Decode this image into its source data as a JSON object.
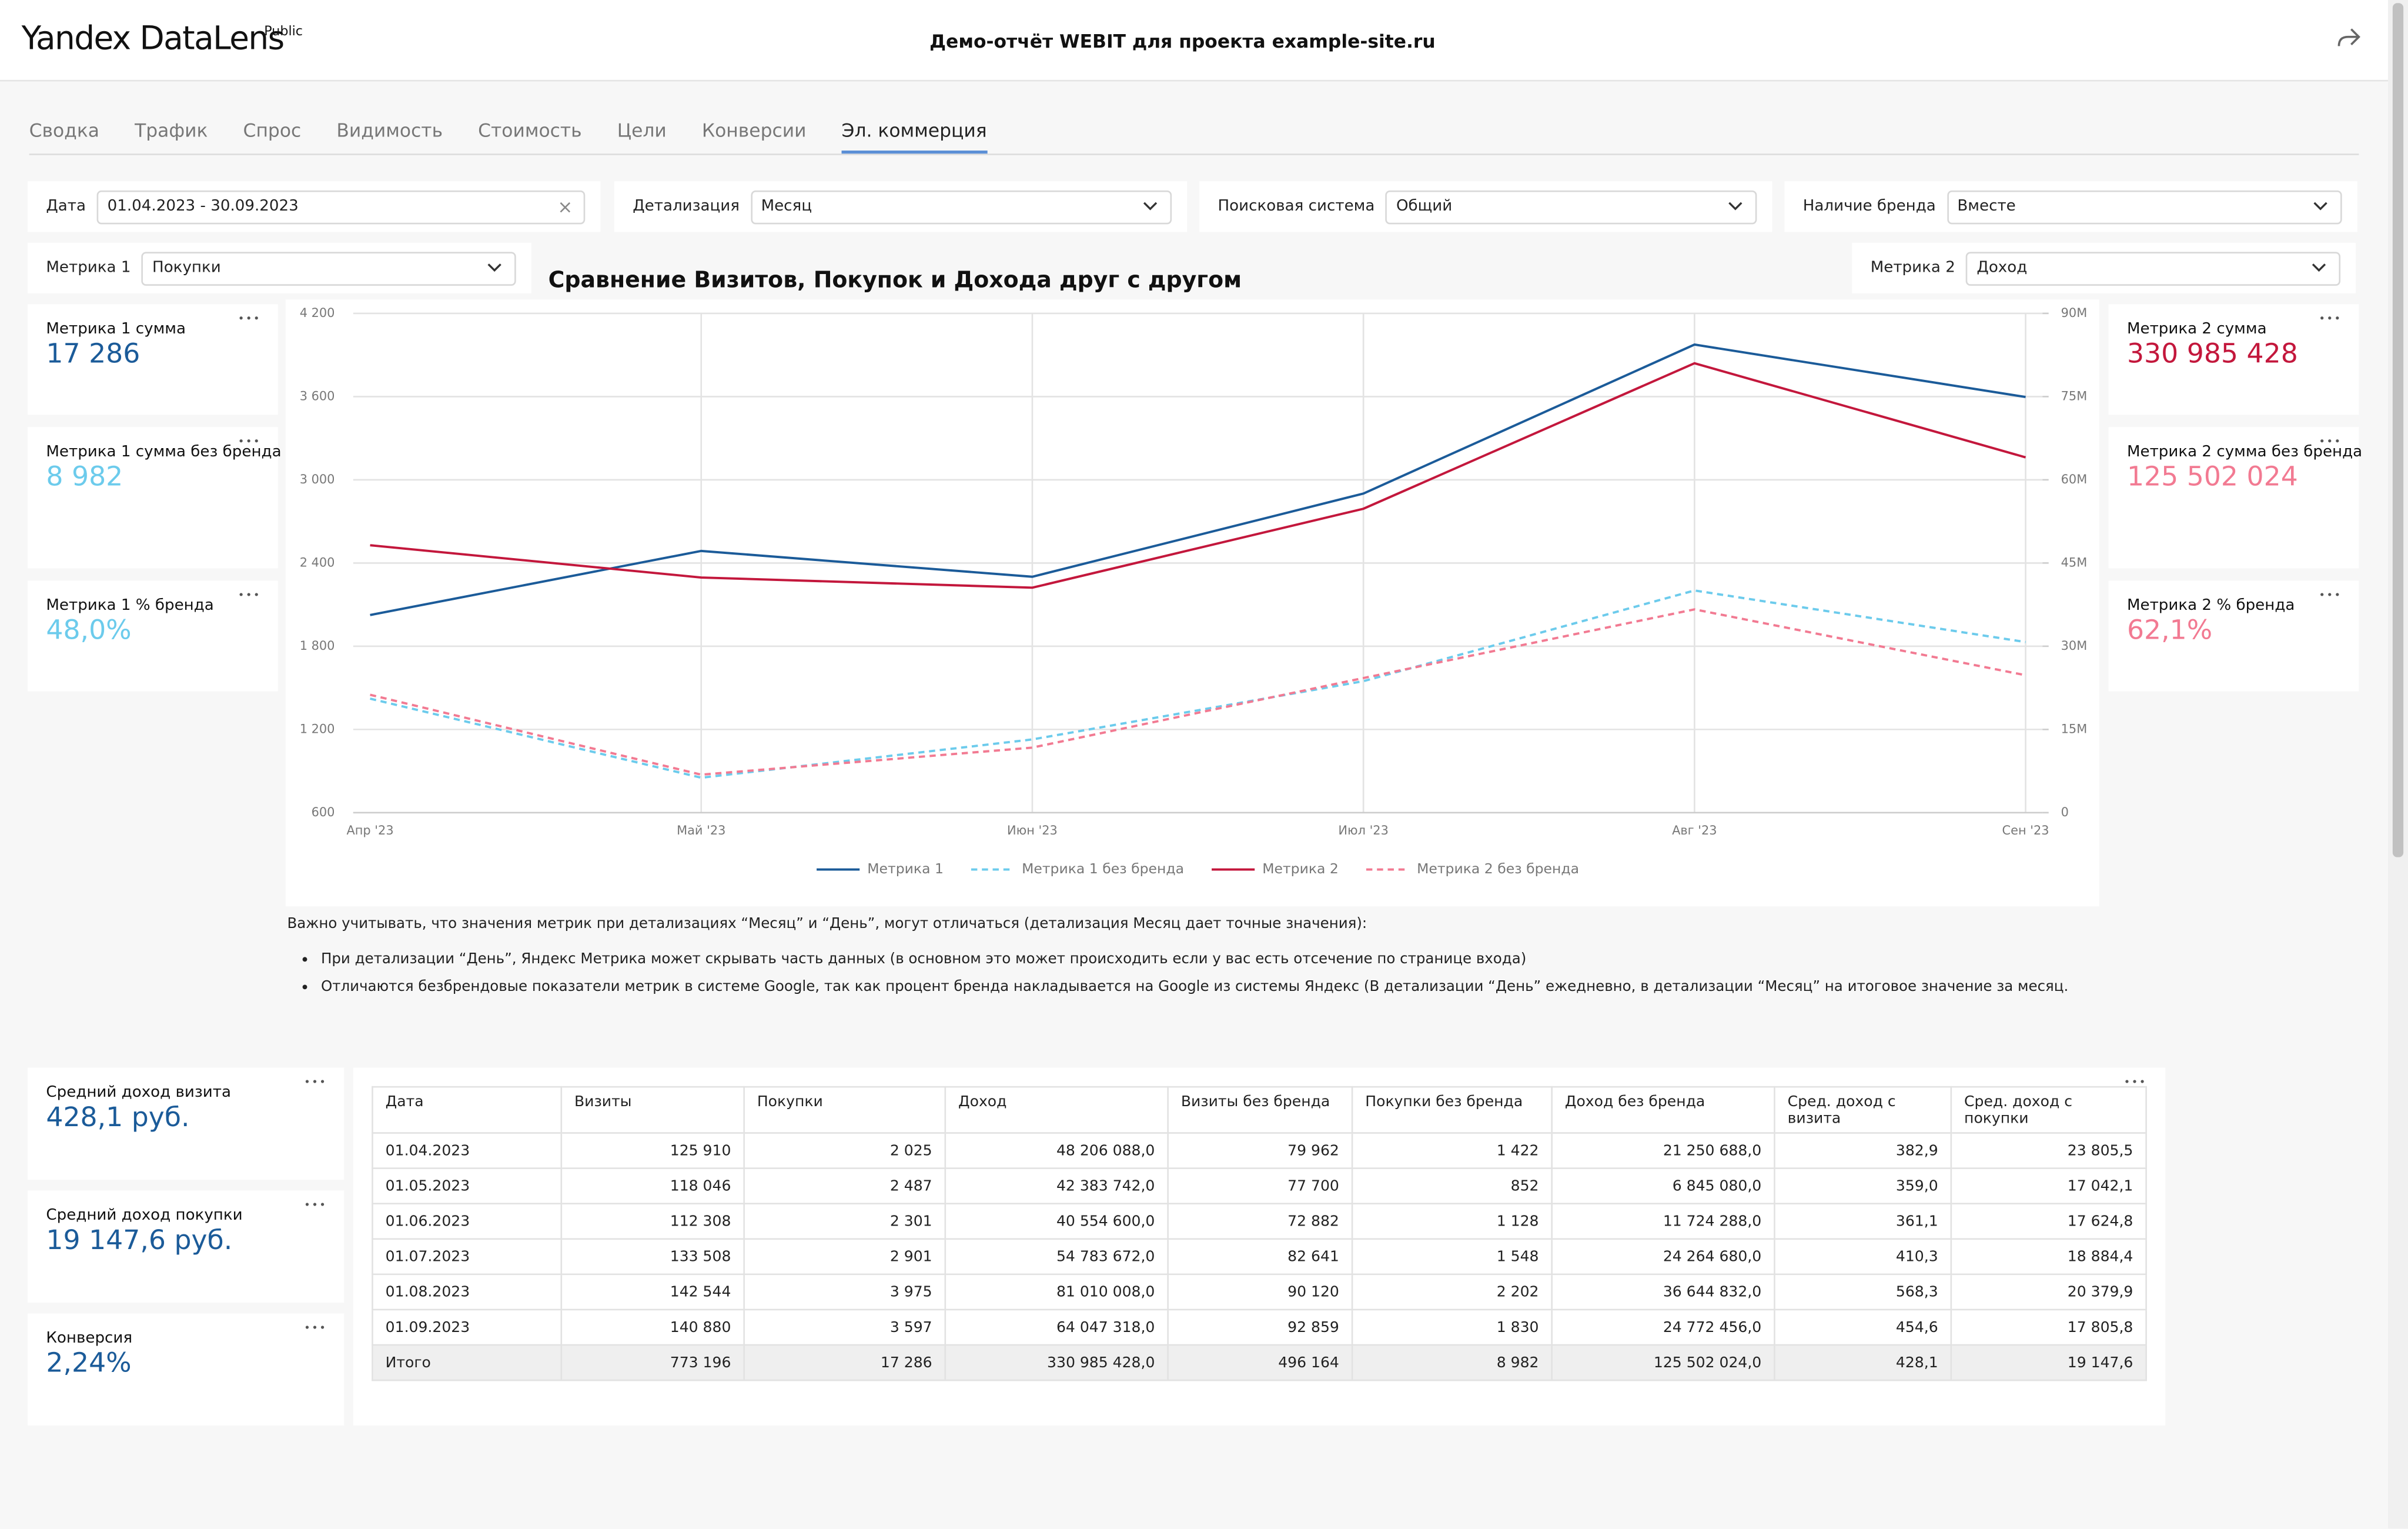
{
  "header": {
    "logo": "Yandex DataLens",
    "badge": "Public",
    "title": "Демо-отчёт WEBIT для проекта example-site.ru"
  },
  "tabs": [
    "Сводка",
    "Трафик",
    "Спрос",
    "Видимость",
    "Стоимость",
    "Цели",
    "Конверсии",
    "Эл. коммерция"
  ],
  "active_tab": 7,
  "filters": [
    {
      "label": "Дата",
      "value": "01.04.2023 - 30.09.2023"
    },
    {
      "label": "Детализация",
      "value": "Месяц"
    },
    {
      "label": "Поисковая система",
      "value": "Общий"
    },
    {
      "label": "Наличие бренда",
      "value": "Вместе"
    }
  ],
  "metric_selectors": [
    {
      "label": "Метрика 1",
      "value": "Покупки"
    },
    {
      "label": "Метрика 2",
      "value": "Доход"
    }
  ],
  "kpis_left": [
    {
      "label": "Метрика 1 сумма",
      "value": "17 286",
      "color": "#1b5b99"
    },
    {
      "label": "Метрика 1 сумма без бренда",
      "value": "8 982",
      "color": "#6ccbec"
    },
    {
      "label": "Метрика 1 % бренда",
      "value": "48,0%",
      "color": "#6ccbec"
    }
  ],
  "kpis_right": [
    {
      "label": "Метрика 2 сумма",
      "value": "330 985 428",
      "color": "#c3173c"
    },
    {
      "label": "Метрика 2 сумма без бренда",
      "value": "125 502 024",
      "color": "#f27a92"
    },
    {
      "label": "Метрика 2 % бренда",
      "value": "62,1%",
      "color": "#f27a92"
    }
  ],
  "chart_data": {
    "type": "line",
    "title": "Сравнение Визитов, Покупок и Дохода друг с другом",
    "categories": [
      "Апр '23",
      "Май '23",
      "Июн '23",
      "Июл '23",
      "Авг '23",
      "Сен '23"
    ],
    "series": [
      {
        "name": "Метрика 1",
        "color": "#1b5b99",
        "dashed": false,
        "values": [
          2025,
          2487,
          2301,
          2901,
          3975,
          3597
        ]
      },
      {
        "name": "Метрика 1 без бренда",
        "color": "#6ccbec",
        "dashed": true,
        "values": [
          1422,
          852,
          1128,
          1548,
          2202,
          1830
        ]
      },
      {
        "name": "Метрика 2",
        "color": "#c3173c",
        "dashed": false,
        "axis": "y2",
        "values": [
          48206088,
          42383742,
          40554600,
          54783672,
          81010008,
          64047318
        ]
      },
      {
        "name": "Метрика 2 без бренда",
        "color": "#f27a92",
        "dashed": true,
        "axis": "y2",
        "values": [
          21250688,
          6845080,
          11724288,
          24264680,
          36644832,
          24772456
        ]
      }
    ],
    "ylim": [
      600,
      4200
    ],
    "yticks": [
      600,
      {
        "value": 1200,
        "label": "1 200"
      },
      {
        "value": 1800,
        "label": "1 800"
      },
      {
        "value": 2400,
        "label": "2 400"
      },
      {
        "value": 3000,
        "label": "3 000"
      },
      {
        "value": 3600,
        "label": "3 600"
      },
      {
        "value": 4200,
        "label": "4 200"
      }
    ],
    "y2lim": [
      0,
      90000000
    ],
    "y2ticks": [
      0,
      {
        "value": 15000000,
        "label": "15M"
      },
      {
        "value": 30000000,
        "label": "30M"
      },
      {
        "value": 45000000,
        "label": "45M"
      },
      {
        "value": 60000000,
        "label": "60M"
      },
      {
        "value": 75000000,
        "label": "75M"
      },
      {
        "value": 90000000,
        "label": "90M"
      }
    ],
    "grid": true,
    "legend": "bottom"
  },
  "notes": {
    "intro": "Важно учитывать, что значения метрик при детализациях “Месяц” и “День”, могут отличаться (детализация Месяц дает точные значения):",
    "bullets": [
      "При детализации “День”, Яндекс Метрика может скрывать часть данных (в основном это может происходить если у вас есть отсечение по странице входа)",
      "Отличаются безбрендовые показатели метрик в системе Google, так как процент бренда накладывается на Google из системы Яндекс (В детализации “День” ежедневно, в детализации “Месяц” на итоговое значение за месяц."
    ]
  },
  "kpis_bottom": [
    {
      "label": "Средний доход визита",
      "value": "428,1 руб.",
      "color": "#1b5b99"
    },
    {
      "label": "Средний доход покупки",
      "value": "19 147,6 руб.",
      "color": "#1b5b99"
    },
    {
      "label": "Конверсия",
      "value": "2,24%",
      "color": "#1b5b99"
    }
  ],
  "table": {
    "columns": [
      "Дата",
      "Визиты",
      "Покупки",
      "Доход",
      "Визиты без бренда",
      "Покупки без бренда",
      "Доход без бренда",
      "Сред. доход с визита",
      "Сред. доход с покупки"
    ],
    "rows": [
      [
        "01.04.2023",
        "125 910",
        "2 025",
        "48 206 088,0",
        "79 962",
        "1 422",
        "21 250 688,0",
        "382,9",
        "23 805,5"
      ],
      [
        "01.05.2023",
        "118 046",
        "2 487",
        "42 383 742,0",
        "77 700",
        "852",
        "6 845 080,0",
        "359,0",
        "17 042,1"
      ],
      [
        "01.06.2023",
        "112 308",
        "2 301",
        "40 554 600,0",
        "72 882",
        "1 128",
        "11 724 288,0",
        "361,1",
        "17 624,8"
      ],
      [
        "01.07.2023",
        "133 508",
        "2 901",
        "54 783 672,0",
        "82 641",
        "1 548",
        "24 264 680,0",
        "410,3",
        "18 884,4"
      ],
      [
        "01.08.2023",
        "142 544",
        "3 975",
        "81 010 008,0",
        "90 120",
        "2 202",
        "36 644 832,0",
        "568,3",
        "20 379,9"
      ],
      [
        "01.09.2023",
        "140 880",
        "3 597",
        "64 047 318,0",
        "92 859",
        "1 830",
        "24 772 456,0",
        "454,6",
        "17 805,8"
      ]
    ],
    "total": [
      "Итого",
      "773 196",
      "17 286",
      "330 985 428,0",
      "496 164",
      "8 982",
      "125 502 024,0",
      "428,1",
      "19 147,6"
    ]
  }
}
